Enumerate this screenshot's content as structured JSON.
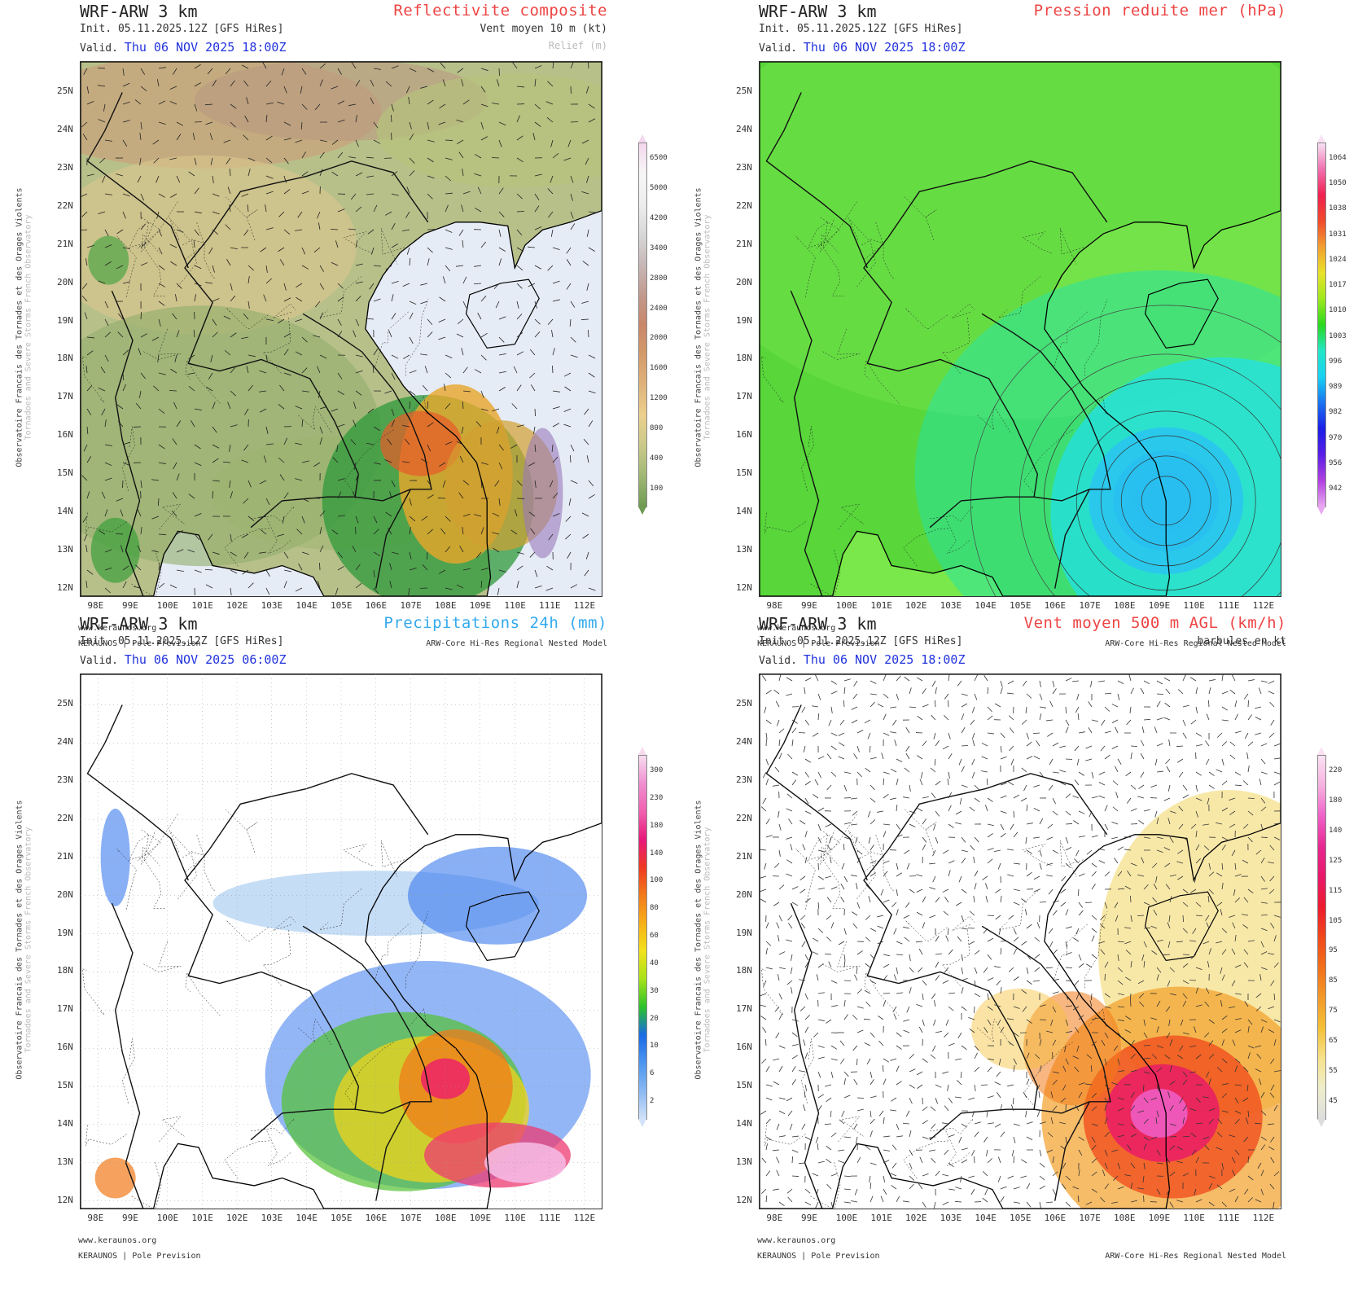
{
  "common": {
    "model": "WRF-ARW 3 km",
    "init": "Init.  05.11.2025.12Z [GFS HiRes]",
    "valid_prefix": "Valid.",
    "site": "www.keraunos.org",
    "footer_left": "KERAUNOS | Pole Prevision",
    "footer_right": "ARW-Core Hi-Res Regional Nested Model",
    "side_fr": "Observatoire Francais des Tornades et des Orages Violents",
    "side_en": "Tornadoes and Severe Storms French Observatory",
    "lat_labels": [
      "25N",
      "24N",
      "23N",
      "22N",
      "21N",
      "20N",
      "19N",
      "18N",
      "17N",
      "16N",
      "15N",
      "14N",
      "13N",
      "12N"
    ],
    "lon_labels": [
      "98E",
      "99E",
      "100E",
      "101E",
      "102E",
      "103E",
      "104E",
      "105E",
      "106E",
      "107E",
      "108E",
      "109E",
      "110E",
      "111E",
      "112E"
    ]
  },
  "panels": [
    {
      "id": "reflectivity",
      "title": "Reflectivite composite",
      "title_color": "#ee4444",
      "subtitle": "Vent moyen 10 m (kt)",
      "subtitle2": "Relief (m)",
      "valid_time": "Thu 06 NOV 2025 18:00Z",
      "has_footer_right": true,
      "colorbar": {
        "labels": [
          "6500",
          "5000",
          "4200",
          "3400",
          "2800",
          "2400",
          "2000",
          "1600",
          "1200",
          "800",
          "400",
          "100"
        ],
        "colors": [
          "#f3d7ee",
          "#f6f6f6",
          "#eeeeee",
          "#d8d8d8",
          "#c8b8b8",
          "#c29a8e",
          "#c9876a",
          "#d49b6a",
          "#e0b37a",
          "#ecd08e",
          "#c9c98a",
          "#9fb874",
          "#6e9a52"
        ]
      }
    },
    {
      "id": "pressure",
      "title": "Pression reduite mer (hPa)",
      "title_color": "#ee4444",
      "subtitle": "",
      "subtitle2": "",
      "valid_time": "Thu 06 NOV 2025 18:00Z",
      "has_footer_right": true,
      "colorbar": {
        "labels": [
          "1064",
          "1050",
          "1038",
          "1031",
          "1024",
          "1017",
          "1010",
          "1003",
          "996",
          "989",
          "982",
          "970",
          "956",
          "942"
        ],
        "colors": [
          "#f7e1f3",
          "#f070b0",
          "#f02050",
          "#f04a2a",
          "#f2a030",
          "#e9e22a",
          "#9ee81e",
          "#2ad81e",
          "#22e6c8",
          "#18d2f2",
          "#1a74f0",
          "#1a1ee6",
          "#5a1ee6",
          "#b040e0",
          "#e8a8f0"
        ]
      }
    },
    {
      "id": "precip",
      "title": "Precipitations 24h (mm)",
      "title_color": "#33aaee",
      "subtitle": "",
      "subtitle2": "",
      "valid_time": "Thu 06 NOV 2025 06:00Z",
      "has_footer_right": false,
      "colorbar": {
        "labels": [
          "300",
          "230",
          "180",
          "140",
          "100",
          "80",
          "60",
          "40",
          "30",
          "20",
          "10",
          "6",
          "2"
        ],
        "colors": [
          "#f7dcef",
          "#f08ed0",
          "#f060b0",
          "#e8187a",
          "#f03a22",
          "#f27a1a",
          "#f7b018",
          "#f2e21a",
          "#a6e21a",
          "#2ac22a",
          "#1a6ae6",
          "#4c96f0",
          "#8ab8f2",
          "#d2e2f8"
        ]
      }
    },
    {
      "id": "wind500",
      "title": "Vent moyen 500 m AGL (km/h)",
      "title_color": "#ee4444",
      "subtitle": "barbules en kt",
      "subtitle2": "",
      "valid_time": "Thu 06 NOV 2025 18:00Z",
      "has_footer_right": true,
      "colorbar": {
        "labels": [
          "220",
          "180",
          "140",
          "125",
          "115",
          "105",
          "95",
          "85",
          "75",
          "65",
          "55",
          "45"
        ],
        "colors": [
          "#fbe2f3",
          "#f6b0e0",
          "#ef60c8",
          "#e62890",
          "#e8186a",
          "#ee1a2e",
          "#f0481a",
          "#f2701a",
          "#f29a28",
          "#f4c038",
          "#f6e28a",
          "#eeeecc",
          "#dddddd"
        ]
      }
    }
  ]
}
